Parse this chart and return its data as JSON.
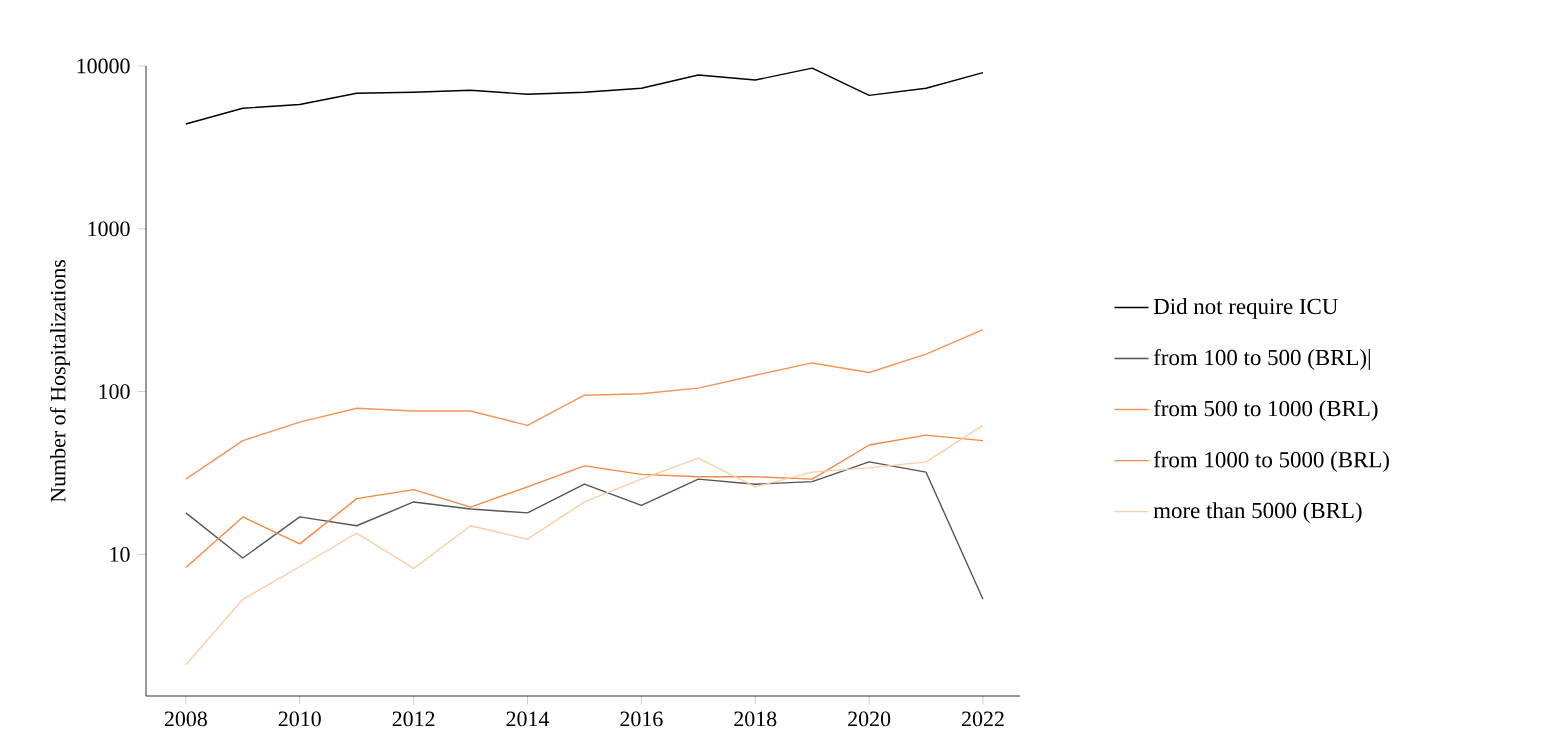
{
  "chart_data": {
    "type": "line",
    "ylabel": "Number of Hospitalizations",
    "log": "y",
    "grid": false,
    "legend": "right",
    "marker": "none",
    "line_style": "solid",
    "x": [
      2008,
      2009,
      2010,
      2011,
      2012,
      2013,
      2014,
      2015,
      2016,
      2017,
      2018,
      2019,
      2020,
      2021,
      2022
    ],
    "xlim": [
      2007.3,
      2022.65
    ],
    "xticks": [
      2008,
      2010,
      2012,
      2014,
      2016,
      2018,
      2020,
      2022
    ],
    "ylim": [
      1.35,
      10000
    ],
    "yticks": [
      10,
      100,
      1000,
      10000
    ],
    "series": [
      {
        "name": "Did not require ICU",
        "color": "#000000",
        "values": [
          4400,
          5500,
          5800,
          6800,
          6900,
          7100,
          6700,
          6900,
          7300,
          8800,
          8200,
          9700,
          6600,
          7300,
          9100
        ]
      },
      {
        "name": "from 100 to 500 (BRL)|",
        "color": "#555555",
        "values": [
          18,
          9.5,
          17,
          15,
          21,
          19,
          18,
          27,
          20,
          29,
          27,
          28,
          37,
          32,
          5.3
        ]
      },
      {
        "name": "from 500 to 1000 (BRL)",
        "color": "#f5955a",
        "values": [
          29,
          50,
          65,
          79,
          76,
          76,
          62,
          95,
          97,
          105,
          126,
          150,
          131,
          170,
          240
        ]
      },
      {
        "name": "from 1000 to 5000 (BRL)",
        "color": "#f28a45",
        "values": [
          8.3,
          17,
          11.6,
          22,
          25,
          19.5,
          26,
          35,
          31,
          30,
          30,
          29,
          47,
          54,
          50
        ]
      },
      {
        "name": "more than 5000 (BRL)",
        "color": "#fbcfa6",
        "values": [
          2.1,
          5.3,
          8.4,
          13.5,
          8.2,
          15,
          12.4,
          21,
          29,
          39,
          26,
          32,
          34,
          37,
          62
        ]
      }
    ]
  }
}
